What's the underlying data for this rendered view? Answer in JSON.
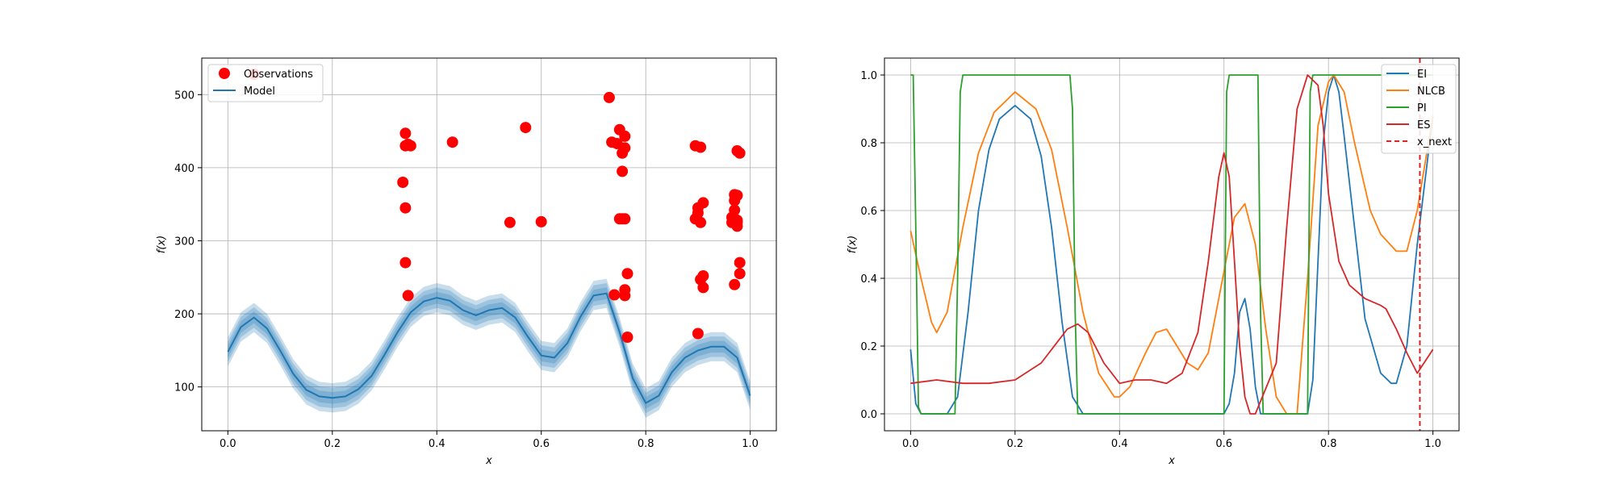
{
  "chart_data": [
    {
      "type": "scatter+line",
      "xlabel": "x",
      "ylabel": "f(x)",
      "xlim": [
        -0.05,
        1.05
      ],
      "ylim": [
        40,
        550
      ],
      "xticks": [
        0.0,
        0.2,
        0.4,
        0.6,
        0.8,
        1.0
      ],
      "xtick_labels": [
        "0.0",
        "0.2",
        "0.4",
        "0.6",
        "0.8",
        "1.0"
      ],
      "yticks": [
        100,
        200,
        300,
        400,
        500
      ],
      "ytick_labels": [
        "100",
        "200",
        "300",
        "400",
        "500"
      ],
      "grid": true,
      "legend_position": "top-left",
      "legend": [
        {
          "label": "Observations",
          "color": "#ff0000",
          "marker": "circle"
        },
        {
          "label": "Model",
          "color": "#1f77b4",
          "marker": "line"
        }
      ],
      "observations": {
        "x": [
          0.05,
          0.335,
          0.34,
          0.34,
          0.34,
          0.34,
          0.345,
          0.345,
          0.35,
          0.43,
          0.54,
          0.57,
          0.6,
          0.73,
          0.735,
          0.74,
          0.745,
          0.75,
          0.75,
          0.755,
          0.755,
          0.755,
          0.76,
          0.76,
          0.76,
          0.76,
          0.76,
          0.765,
          0.765,
          0.895,
          0.895,
          0.9,
          0.9,
          0.9,
          0.905,
          0.905,
          0.905,
          0.91,
          0.91,
          0.91,
          0.965,
          0.965,
          0.97,
          0.97,
          0.97,
          0.97,
          0.97,
          0.975,
          0.975,
          0.975,
          0.975,
          0.975,
          0.98,
          0.98,
          0.98
        ],
        "y": [
          528,
          380,
          447,
          430,
          345,
          270,
          225,
          432,
          430,
          435,
          325,
          455,
          326,
          496,
          435,
          226,
          433,
          330,
          452,
          420,
          395,
          330,
          427,
          443,
          330,
          233,
          225,
          168,
          255,
          330,
          430,
          345,
          338,
          173,
          428,
          325,
          247,
          352,
          236,
          252,
          325,
          332,
          363,
          342,
          330,
          355,
          240,
          328,
          320,
          325,
          362,
          423,
          420,
          270,
          255
        ]
      },
      "model": {
        "x": [
          0.0,
          0.025,
          0.05,
          0.075,
          0.1,
          0.125,
          0.15,
          0.175,
          0.2,
          0.225,
          0.25,
          0.275,
          0.3,
          0.325,
          0.35,
          0.375,
          0.4,
          0.425,
          0.45,
          0.475,
          0.5,
          0.525,
          0.55,
          0.575,
          0.6,
          0.625,
          0.65,
          0.675,
          0.7,
          0.725,
          0.75,
          0.775,
          0.8,
          0.825,
          0.85,
          0.875,
          0.9,
          0.925,
          0.95,
          0.975,
          1.0
        ],
        "mean": [
          148,
          182,
          195,
          180,
          150,
          118,
          96,
          87,
          85,
          87,
          97,
          115,
          144,
          175,
          202,
          217,
          222,
          218,
          205,
          198,
          205,
          208,
          195,
          168,
          143,
          140,
          160,
          196,
          225,
          228,
          175,
          112,
          78,
          88,
          120,
          140,
          150,
          155,
          155,
          140,
          88
        ],
        "bands": [
          8,
          14,
          20
        ]
      }
    },
    {
      "type": "line",
      "xlabel": "x",
      "ylabel": "f(x)",
      "xlim": [
        -0.05,
        1.05
      ],
      "ylim": [
        -0.05,
        1.05
      ],
      "xticks": [
        0.0,
        0.2,
        0.4,
        0.6,
        0.8,
        1.0
      ],
      "xtick_labels": [
        "0.0",
        "0.2",
        "0.4",
        "0.6",
        "0.8",
        "1.0"
      ],
      "yticks": [
        0.0,
        0.2,
        0.4,
        0.6,
        0.8,
        1.0
      ],
      "ytick_labels": [
        "0.0",
        "0.2",
        "0.4",
        "0.6",
        "0.8",
        "1.0"
      ],
      "grid": true,
      "legend_position": "top-right",
      "x_next": 0.975,
      "series": [
        {
          "name": "EI",
          "color": "#1f77b4",
          "x": [
            0.0,
            0.01,
            0.02,
            0.05,
            0.07,
            0.09,
            0.11,
            0.13,
            0.15,
            0.17,
            0.2,
            0.23,
            0.25,
            0.27,
            0.29,
            0.31,
            0.33,
            0.6,
            0.61,
            0.62,
            0.63,
            0.64,
            0.65,
            0.66,
            0.67,
            0.76,
            0.77,
            0.78,
            0.79,
            0.8,
            0.81,
            0.82,
            0.83,
            0.85,
            0.87,
            0.9,
            0.92,
            0.93,
            0.95,
            0.97,
            1.0
          ],
          "y": [
            0.19,
            0.03,
            0.0,
            0.0,
            0.0,
            0.05,
            0.3,
            0.6,
            0.78,
            0.87,
            0.91,
            0.87,
            0.76,
            0.55,
            0.27,
            0.05,
            0.0,
            0.0,
            0.03,
            0.12,
            0.3,
            0.34,
            0.25,
            0.08,
            0.0,
            0.0,
            0.1,
            0.45,
            0.8,
            0.95,
            1.0,
            0.95,
            0.82,
            0.55,
            0.28,
            0.12,
            0.09,
            0.09,
            0.2,
            0.5,
            0.88
          ]
        },
        {
          "name": "NLCB",
          "color": "#ff7f0e",
          "x": [
            0.0,
            0.02,
            0.04,
            0.05,
            0.07,
            0.1,
            0.13,
            0.16,
            0.2,
            0.24,
            0.27,
            0.3,
            0.33,
            0.36,
            0.39,
            0.4,
            0.42,
            0.45,
            0.47,
            0.49,
            0.51,
            0.53,
            0.55,
            0.57,
            0.6,
            0.62,
            0.64,
            0.66,
            0.68,
            0.7,
            0.72,
            0.74,
            0.76,
            0.78,
            0.8,
            0.81,
            0.83,
            0.85,
            0.88,
            0.9,
            0.93,
            0.95,
            0.97,
            1.0
          ],
          "y": [
            0.54,
            0.4,
            0.27,
            0.24,
            0.3,
            0.55,
            0.77,
            0.89,
            0.95,
            0.9,
            0.78,
            0.55,
            0.3,
            0.12,
            0.05,
            0.05,
            0.08,
            0.18,
            0.24,
            0.25,
            0.2,
            0.15,
            0.13,
            0.18,
            0.42,
            0.58,
            0.62,
            0.5,
            0.25,
            0.05,
            0.0,
            0.0,
            0.4,
            0.85,
            0.98,
            1.0,
            0.95,
            0.8,
            0.6,
            0.53,
            0.48,
            0.48,
            0.6,
            0.88
          ]
        },
        {
          "name": "PI",
          "color": "#2ca02c",
          "x": [
            0.0,
            0.005,
            0.01,
            0.015,
            0.02,
            0.085,
            0.09,
            0.095,
            0.1,
            0.305,
            0.31,
            0.315,
            0.32,
            0.6,
            0.605,
            0.61,
            0.665,
            0.67,
            0.675,
            0.76,
            0.765,
            0.77,
            1.0
          ],
          "y": [
            1.0,
            1.0,
            0.55,
            0.02,
            0.0,
            0.0,
            0.4,
            0.95,
            1.0,
            1.0,
            0.9,
            0.3,
            0.0,
            0.0,
            0.95,
            1.0,
            1.0,
            0.3,
            0.0,
            0.0,
            0.95,
            1.0,
            1.0
          ]
        },
        {
          "name": "ES",
          "color": "#d62728",
          "x": [
            0.0,
            0.05,
            0.1,
            0.15,
            0.2,
            0.25,
            0.28,
            0.3,
            0.32,
            0.34,
            0.37,
            0.4,
            0.43,
            0.46,
            0.49,
            0.52,
            0.55,
            0.57,
            0.59,
            0.6,
            0.61,
            0.62,
            0.63,
            0.64,
            0.65,
            0.66,
            0.7,
            0.72,
            0.74,
            0.76,
            0.78,
            0.79,
            0.8,
            0.82,
            0.84,
            0.87,
            0.9,
            0.91,
            0.93,
            0.95,
            0.97,
            1.0
          ],
          "y": [
            0.09,
            0.1,
            0.09,
            0.09,
            0.1,
            0.15,
            0.21,
            0.25,
            0.265,
            0.24,
            0.15,
            0.09,
            0.1,
            0.1,
            0.09,
            0.12,
            0.24,
            0.45,
            0.7,
            0.77,
            0.7,
            0.45,
            0.2,
            0.05,
            0.0,
            0.0,
            0.15,
            0.55,
            0.9,
            1.0,
            0.97,
            0.85,
            0.65,
            0.45,
            0.38,
            0.34,
            0.32,
            0.31,
            0.25,
            0.18,
            0.12,
            0.19
          ]
        }
      ],
      "markers": [
        {
          "name": "x_next",
          "color": "#d62728",
          "style": "dashed"
        }
      ]
    }
  ]
}
